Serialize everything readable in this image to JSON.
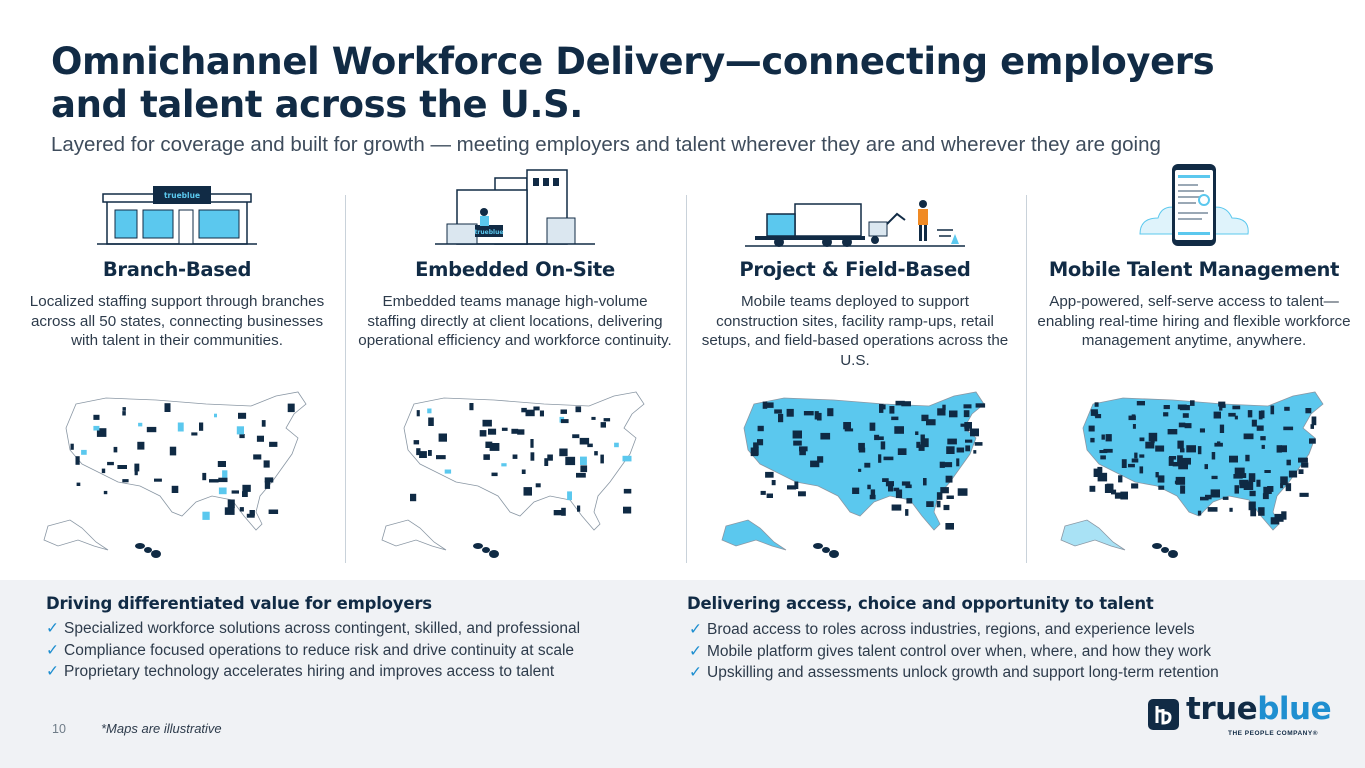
{
  "title": "Omnichannel Workforce Delivery—connecting employers and talent across the U.S.",
  "subtitle": "Layered for coverage and built for growth — meeting employers and talent wherever they are and wherever they are going",
  "columns": [
    {
      "heading": "Branch-Based",
      "description": "Localized staffing support through branches across all 50 states, connecting businesses with talent in their communities.",
      "illustration_icon": "branch-storefront-icon",
      "illustration_text": "trueblue",
      "map_coverage": "sparse"
    },
    {
      "heading": "Embedded On-Site",
      "description": "Embedded teams manage high-volume staffing directly at client locations, delivering operational efficiency and workforce continuity.",
      "illustration_icon": "client-facility-icon",
      "illustration_text": "trueblue",
      "map_coverage": "sparse"
    },
    {
      "heading": "Project & Field-Based",
      "description": "Mobile teams deployed to support construction sites, facility ramp-ups, retail setups, and field-based operations across the U.S.",
      "illustration_icon": "field-truck-worker-icon",
      "map_coverage": "broad"
    },
    {
      "heading": "Mobile Talent Management",
      "description": "App-powered, self-serve access to talent—enabling real-time hiring and flexible workforce management anytime, anywhere.",
      "illustration_icon": "mobile-app-phone-icon",
      "map_coverage": "full"
    }
  ],
  "employers": {
    "heading": "Driving differentiated value for employers",
    "items": [
      "Specialized workforce solutions across contingent, skilled, and professional",
      "Compliance focused operations to reduce risk and drive continuity at scale",
      "Proprietary technology accelerates hiring and improves access to talent"
    ]
  },
  "talent": {
    "heading": "Delivering access, choice and opportunity to talent",
    "items": [
      "Broad access to roles across industries, regions, and experience levels",
      "Mobile platform gives talent control over when, where, and how they work",
      "Upskilling and assessments unlock growth and support long-term retention"
    ]
  },
  "check_mark": "✓",
  "page_number": "10",
  "footnote": "*Maps are illustrative",
  "logo": {
    "word_dark": "true",
    "word_blue": "blue",
    "tagline": "THE PEOPLE COMPANY®"
  },
  "colors": {
    "navy": "#112b45",
    "accent_blue": "#1f8fd0",
    "map_light": "#5bc8ee",
    "map_dark": "#0f2a44",
    "panel_bg": "#f0f2f5"
  }
}
